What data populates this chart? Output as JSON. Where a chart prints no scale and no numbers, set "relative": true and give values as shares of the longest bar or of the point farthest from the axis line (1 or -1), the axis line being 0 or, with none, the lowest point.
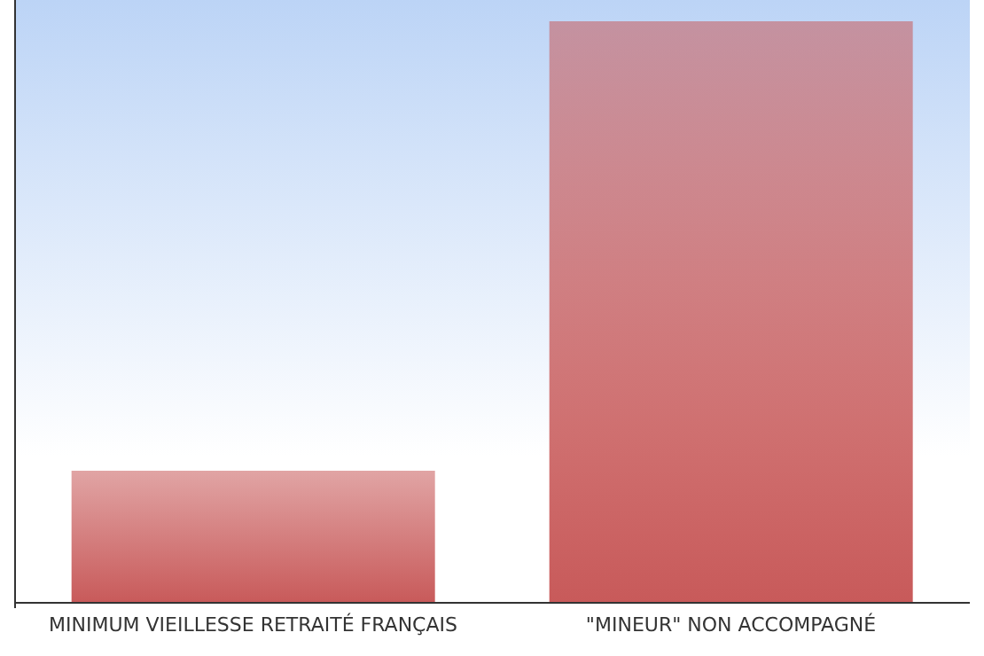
{
  "chart_data": {
    "type": "bar",
    "relative": true,
    "categories": [
      "MINIMUM VIEILLESSE RETRAITÉ FRANÇAIS",
      "\"MINEUR\" NON ACCOMPAGNÉ"
    ],
    "values": [
      0.227,
      1
    ],
    "color": "#c85a5a",
    "grid": false,
    "legend": false
  }
}
